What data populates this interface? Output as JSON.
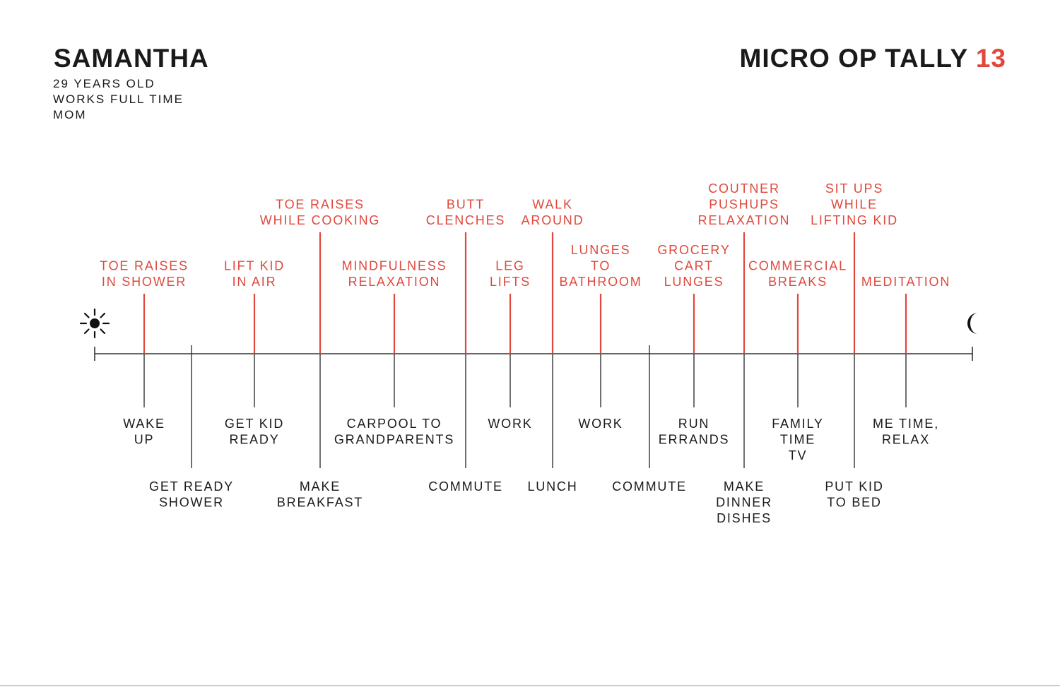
{
  "person": {
    "name": "SAMANTHA",
    "details": [
      "29 YEARS OLD",
      "WORKS FULL TIME",
      "MOM"
    ]
  },
  "tally": {
    "label": "MICRO OP TALLY",
    "count": "13"
  },
  "colors": {
    "accent": "#e0483c",
    "ink": "#1a1a1a",
    "axis": "#333333"
  },
  "icons": {
    "start": "sun-icon",
    "end": "moon-icon"
  },
  "activities": [
    {
      "lines": [
        "WAKE",
        "UP"
      ],
      "row": 1
    },
    {
      "lines": [
        "GET READY",
        "SHOWER"
      ],
      "row": 2
    },
    {
      "lines": [
        "GET KID",
        "READY"
      ],
      "row": 1
    },
    {
      "lines": [
        "MAKE",
        "BREAKFAST"
      ],
      "row": 2
    },
    {
      "lines": [
        "CARPOOL TO",
        "GRANDPARENTS"
      ],
      "row": 1
    },
    {
      "lines": [
        "COMMUTE"
      ],
      "row": 2
    },
    {
      "lines": [
        "WORK"
      ],
      "row": 1
    },
    {
      "lines": [
        "LUNCH"
      ],
      "row": 2
    },
    {
      "lines": [
        "WORK"
      ],
      "row": 1
    },
    {
      "lines": [
        "COMMUTE"
      ],
      "row": 2
    },
    {
      "lines": [
        "RUN",
        "ERRANDS"
      ],
      "row": 1
    },
    {
      "lines": [
        "MAKE",
        "DINNER",
        "DISHES"
      ],
      "row": 2
    },
    {
      "lines": [
        "FAMILY",
        "TIME",
        "TV"
      ],
      "row": 1
    },
    {
      "lines": [
        "PUT KID",
        "TO BED"
      ],
      "row": 2
    },
    {
      "lines": [
        "ME TIME,",
        "RELAX"
      ],
      "row": 1
    }
  ],
  "micro_ops": [
    {
      "lines": [
        "TOE RAISES",
        "IN SHOWER"
      ],
      "level": 1
    },
    {
      "lines": [
        "LIFT KID",
        "IN AIR"
      ],
      "level": 1
    },
    {
      "lines": [
        "TOE RAISES",
        "WHILE COOKING"
      ],
      "level": 2
    },
    {
      "lines": [
        "MINDFULNESS",
        "RELAXATION"
      ],
      "level": 1
    },
    {
      "lines": [
        "BUTT",
        "CLENCHES"
      ],
      "level": 2
    },
    {
      "lines": [
        "LEG",
        "LIFTS"
      ],
      "level": 1
    },
    {
      "lines": [
        "WALK",
        "AROUND"
      ],
      "level": 2
    },
    {
      "lines": [
        "LUNGES",
        "TO",
        "BATHROOM"
      ],
      "level": 1
    },
    {
      "lines": [
        "GROCERY",
        "CART",
        "LUNGES"
      ],
      "level": 1
    },
    {
      "lines": [
        "COUTNER",
        "PUSHUPS",
        "RELAXATION"
      ],
      "level": 2
    },
    {
      "lines": [
        "COMMERCIAL",
        "BREAKS"
      ],
      "level": 1
    },
    {
      "lines": [
        "SIT UPS",
        "WHILE",
        "LIFTING KID"
      ],
      "level": 2
    },
    {
      "lines": [
        "MEDITATION"
      ],
      "level": 1
    }
  ]
}
